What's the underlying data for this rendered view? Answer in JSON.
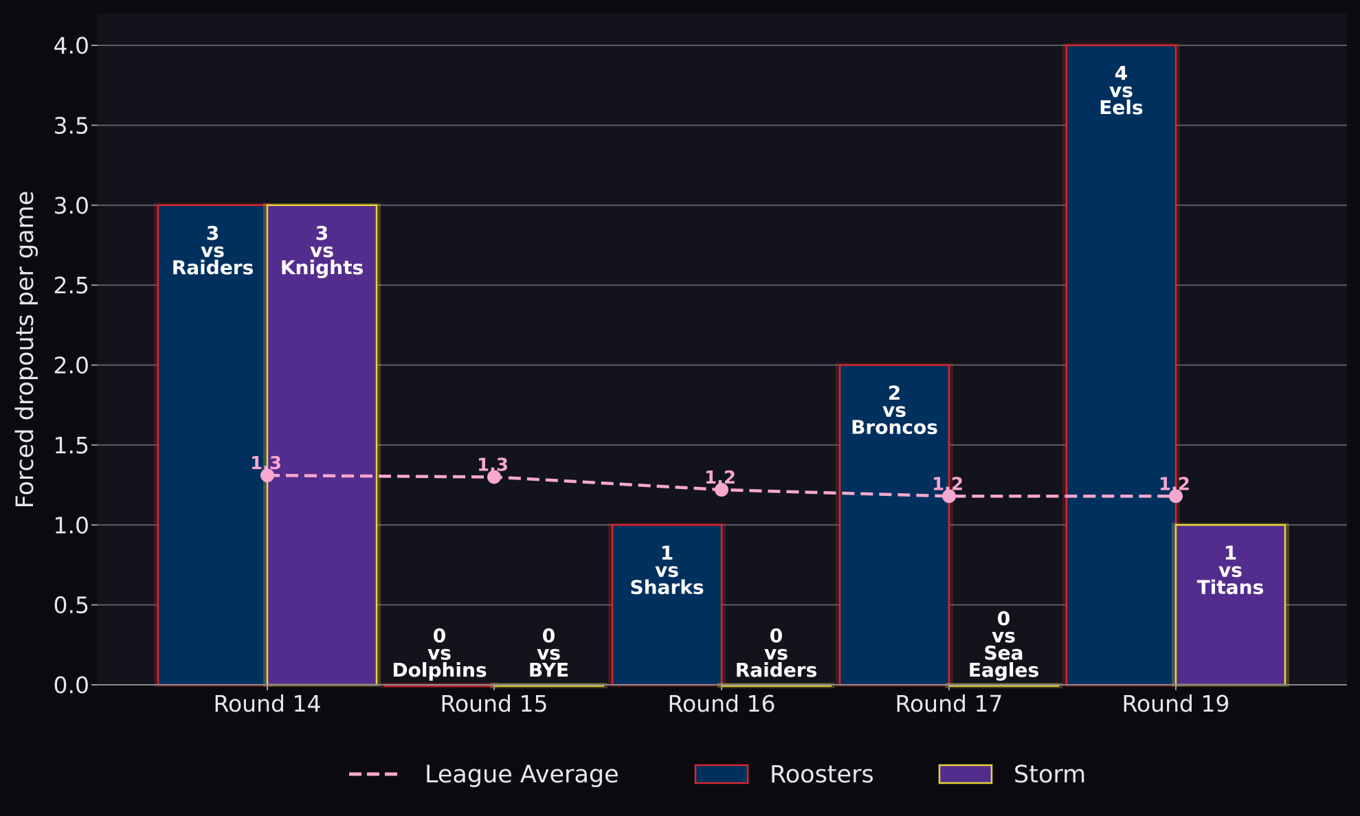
{
  "chart_data": {
    "type": "bar",
    "ylabel": "Forced dropouts per game",
    "xlabel": "",
    "ylim": [
      0,
      4.2
    ],
    "y_ticks": [
      "0.0",
      "0.5",
      "1.0",
      "1.5",
      "2.0",
      "2.5",
      "3.0",
      "3.5",
      "4.0"
    ],
    "categories": [
      "Round 14",
      "Round 15",
      "Round 16",
      "Round 17",
      "Round 19"
    ],
    "grid": "horizontal",
    "legend_position": "bottom-center",
    "series": [
      {
        "name": "Roosters",
        "type": "bar",
        "fill": "#00305e",
        "edge": "#d7262e",
        "values": [
          3,
          0,
          1,
          2,
          4
        ],
        "labels": [
          "3\nvs\nRaiders",
          "0\nvs\nDolphins",
          "1\nvs\nSharks",
          "2\nvs\nBroncos",
          "4\nvs\nEels"
        ]
      },
      {
        "name": "Storm",
        "type": "bar",
        "fill": "#532d8e",
        "edge": "#e8d33a",
        "values": [
          3,
          0,
          0,
          0,
          1
        ],
        "labels": [
          "3\nvs\nKnights",
          "0\nvs\nBYE",
          "0\nvs\nRaiders",
          "0\nvs\nSea\nEagles",
          "1\nvs\nTitans"
        ]
      },
      {
        "name": "League Average",
        "type": "line",
        "style": "dashed",
        "color": "#f7a8cf",
        "values": [
          1.31,
          1.3,
          1.22,
          1.18,
          1.18
        ],
        "labels": [
          "1.3",
          "1.3",
          "1.2",
          "1.2",
          "1.2"
        ]
      }
    ]
  }
}
